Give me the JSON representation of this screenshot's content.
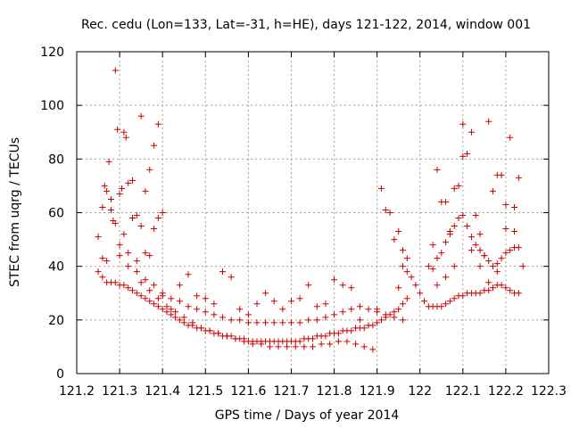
{
  "chart_data": {
    "type": "scatter",
    "title": "Rec. cedu (Lon=133, Lat=-31, h=HE), days 121-122, 2014, window 001",
    "xlabel": "GPS time / Days of year 2014",
    "ylabel": "STEC from uqrg / TECUs",
    "xlim": [
      121.2,
      122.3
    ],
    "ylim": [
      0,
      120
    ],
    "xticks": [
      "121.2",
      "121.3",
      "121.4",
      "121.5",
      "121.6",
      "121.7",
      "121.8",
      "121.9",
      "122",
      "122.1",
      "122.2",
      "122.3"
    ],
    "yticks": [
      "0",
      "20",
      "40",
      "60",
      "80",
      "100",
      "120"
    ],
    "grid": true,
    "marker": "plus",
    "color": "#cc0000",
    "series": [
      {
        "x": [
          121.26,
          121.265,
          121.27,
          121.275,
          121.28,
          121.285,
          121.29,
          121.295,
          121.3,
          121.305,
          121.31,
          121.315,
          121.32,
          121.33,
          121.34,
          121.35,
          121.36,
          121.37,
          121.38,
          121.39
        ],
        "y": [
          62,
          70,
          68,
          79,
          65,
          57,
          113,
          91,
          67,
          69,
          90,
          88,
          71,
          72,
          59,
          96,
          68,
          76,
          85,
          93
        ]
      },
      {
        "x": [
          121.25,
          121.26,
          121.27,
          121.28,
          121.29,
          121.3,
          121.31,
          121.32,
          121.33,
          121.34,
          121.35,
          121.36,
          121.37,
          121.38,
          121.39,
          121.4
        ],
        "y": [
          51,
          43,
          42,
          61,
          56,
          48,
          52,
          45,
          58,
          42,
          55,
          45,
          44,
          54,
          58,
          60
        ]
      },
      {
        "x": [
          121.25,
          121.26,
          121.27,
          121.28,
          121.29,
          121.3,
          121.31,
          121.32,
          121.33,
          121.34,
          121.35,
          121.36,
          121.37,
          121.38,
          121.39,
          121.4,
          121.41,
          121.42,
          121.43,
          121.44,
          121.45,
          121.46,
          121.47,
          121.48,
          121.49,
          121.5,
          121.51,
          121.52,
          121.53,
          121.54,
          121.55,
          121.56,
          121.57,
          121.58,
          121.59,
          121.6,
          121.61,
          121.62,
          121.63,
          121.64,
          121.65,
          121.66,
          121.67,
          121.68,
          121.69,
          121.7,
          121.71,
          121.72,
          121.73,
          121.74,
          121.75,
          121.76,
          121.77,
          121.78,
          121.79,
          121.8,
          121.81,
          121.82,
          121.83,
          121.84,
          121.85,
          121.86,
          121.87,
          121.88,
          121.89,
          121.9,
          121.91,
          121.92,
          121.93,
          121.94,
          121.95,
          121.96,
          121.97
        ],
        "y": [
          38,
          36,
          34,
          34,
          34,
          33,
          33,
          32,
          31,
          30,
          29,
          28,
          27,
          26,
          25,
          24,
          23,
          22,
          21,
          20,
          19,
          18,
          18,
          17,
          17,
          16,
          16,
          15,
          15,
          14,
          14,
          14,
          13,
          13,
          13,
          12,
          12,
          12,
          12,
          12,
          12,
          12,
          12,
          12,
          12,
          12,
          12,
          12,
          13,
          13,
          13,
          14,
          14,
          14,
          15,
          15,
          15,
          16,
          16,
          16,
          17,
          17,
          17,
          18,
          18,
          19,
          20,
          21,
          22,
          23,
          24,
          26,
          28
        ]
      },
      {
        "x": [
          121.3,
          121.32,
          121.34,
          121.36,
          121.38,
          121.4,
          121.42,
          121.44,
          121.46,
          121.48,
          121.5,
          121.52,
          121.54,
          121.56,
          121.58,
          121.6,
          121.62,
          121.64,
          121.66,
          121.68,
          121.7,
          121.72,
          121.74,
          121.76,
          121.78,
          121.8,
          121.82,
          121.84,
          121.86,
          121.88,
          121.9,
          121.92,
          121.94,
          121.96
        ],
        "y": [
          44,
          40,
          38,
          35,
          33,
          30,
          28,
          27,
          25,
          24,
          23,
          22,
          21,
          20,
          20,
          19,
          19,
          19,
          19,
          19,
          19,
          19,
          20,
          20,
          21,
          22,
          23,
          24,
          25,
          24,
          23,
          22,
          21,
          20
        ]
      },
      {
        "x": [
          121.35,
          121.37,
          121.39,
          121.41,
          121.43,
          121.45,
          121.47,
          121.49,
          121.51,
          121.53,
          121.55,
          121.57,
          121.59,
          121.61,
          121.63,
          121.65,
          121.67,
          121.69,
          121.71,
          121.73,
          121.75,
          121.77,
          121.79,
          121.81,
          121.83,
          121.85,
          121.87,
          121.89
        ],
        "y": [
          34,
          31,
          28,
          25,
          23,
          21,
          19,
          17,
          16,
          15,
          14,
          13,
          12,
          11,
          11,
          10,
          10,
          10,
          10,
          10,
          10,
          11,
          11,
          12,
          12,
          11,
          10,
          9
        ]
      },
      {
        "x": [
          121.4,
          121.42,
          121.44,
          121.46,
          121.48,
          121.5,
          121.52,
          121.54,
          121.56,
          121.58,
          121.6,
          121.62,
          121.64,
          121.66,
          121.68,
          121.7,
          121.72,
          121.74,
          121.76,
          121.78,
          121.8,
          121.82,
          121.84,
          121.86,
          121.88,
          121.9
        ],
        "y": [
          29,
          24,
          33,
          37,
          29,
          28,
          26,
          38,
          36,
          24,
          22,
          26,
          30,
          27,
          24,
          27,
          28,
          33,
          25,
          26,
          35,
          33,
          32,
          20,
          18,
          24
        ]
      },
      {
        "x": [
          121.91,
          121.92,
          121.93,
          121.94,
          121.95,
          121.96,
          121.97
        ],
        "y": [
          69,
          61,
          60,
          50,
          53,
          46,
          43
        ]
      },
      {
        "x": [
          121.95,
          121.96,
          121.97,
          121.98,
          121.99,
          122.0,
          122.01,
          122.02,
          122.03,
          122.04,
          122.05,
          122.06,
          122.07,
          122.08,
          122.09,
          122.1,
          122.11,
          122.12,
          122.13,
          122.14,
          122.15,
          122.16,
          122.17,
          122.18,
          122.19,
          122.2,
          122.21,
          122.22,
          122.23
        ],
        "y": [
          32,
          40,
          38,
          36,
          33,
          30,
          27,
          25,
          25,
          25,
          25,
          26,
          27,
          28,
          29,
          29,
          30,
          30,
          30,
          30,
          31,
          31,
          32,
          33,
          33,
          32,
          31,
          30,
          30
        ]
      },
      {
        "x": [
          122.02,
          122.03,
          122.04,
          122.05,
          122.06,
          122.07,
          122.08,
          122.09,
          122.1,
          122.11,
          122.12,
          122.13,
          122.14,
          122.15,
          122.16,
          122.17,
          122.18,
          122.19,
          122.2,
          122.21,
          122.22,
          122.23
        ],
        "y": [
          40,
          39,
          43,
          45,
          49,
          53,
          55,
          58,
          59,
          55,
          51,
          48,
          46,
          44,
          42,
          40,
          41,
          43,
          45,
          46,
          47,
          47
        ]
      },
      {
        "x": [
          122.03,
          122.04,
          122.05,
          122.06,
          122.07,
          122.08,
          122.09,
          122.1,
          122.11,
          122.12,
          122.13,
          122.14,
          122.15,
          122.16,
          122.17,
          122.18,
          122.19,
          122.2,
          122.21,
          122.22,
          122.23
        ],
        "y": [
          48,
          76,
          64,
          64,
          52,
          69,
          70,
          81,
          82,
          90,
          59,
          52,
          44,
          94,
          68,
          74,
          74,
          63,
          88,
          62,
          73
        ]
      },
      {
        "x": [
          122.04,
          122.06,
          122.08,
          122.1,
          122.12,
          122.14,
          122.16,
          122.18,
          122.2,
          122.22,
          122.24
        ],
        "y": [
          33,
          36,
          40,
          93,
          46,
          40,
          34,
          38,
          54,
          53,
          40
        ]
      }
    ]
  }
}
